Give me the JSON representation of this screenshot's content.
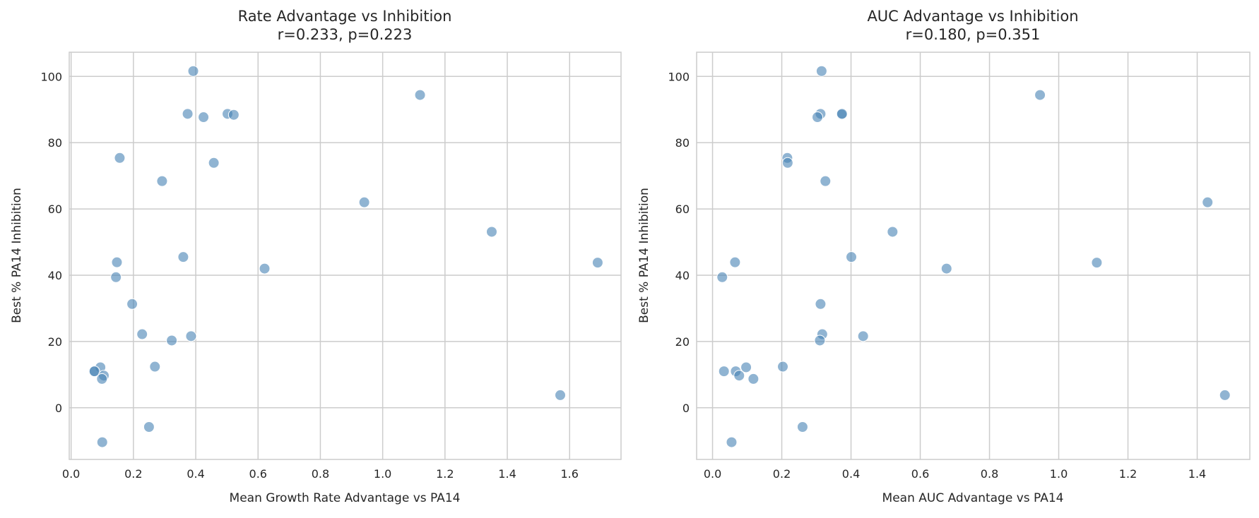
{
  "chart_data": [
    {
      "type": "scatter",
      "title": "Rate Advantage vs Inhibition",
      "subtitle": "r=0.233, p=0.223",
      "xlabel": "Mean Growth Rate Advantage vs PA14",
      "ylabel": "Best % PA14 Inhibition",
      "xlim": [
        -0.006,
        1.765
      ],
      "ylim": [
        -15.6,
        107.3
      ],
      "xticks": [
        "0.0",
        "0.2",
        "0.4",
        "0.6",
        "0.8",
        "1.0",
        "1.2",
        "1.4",
        "1.6"
      ],
      "yticks": [
        "0",
        "20",
        "40",
        "60",
        "80",
        "100"
      ],
      "grid": true,
      "color": "#4682b4",
      "points": [
        [
          0.392,
          101.6
        ],
        [
          0.374,
          88.7
        ],
        [
          0.425,
          87.7
        ],
        [
          0.502,
          88.7
        ],
        [
          0.522,
          88.4
        ],
        [
          1.12,
          94.4
        ],
        [
          0.156,
          75.4
        ],
        [
          0.458,
          73.9
        ],
        [
          0.292,
          68.4
        ],
        [
          0.941,
          62.0
        ],
        [
          1.35,
          53.1
        ],
        [
          0.36,
          45.5
        ],
        [
          0.147,
          43.9
        ],
        [
          1.69,
          43.8
        ],
        [
          0.621,
          42.0
        ],
        [
          0.144,
          39.4
        ],
        [
          0.196,
          31.3
        ],
        [
          0.228,
          22.2
        ],
        [
          0.385,
          21.6
        ],
        [
          0.323,
          20.3
        ],
        [
          0.269,
          12.4
        ],
        [
          0.094,
          12.2
        ],
        [
          0.073,
          11.0
        ],
        [
          0.075,
          11.0
        ],
        [
          0.105,
          9.7
        ],
        [
          0.099,
          8.7
        ],
        [
          1.57,
          3.8
        ],
        [
          0.25,
          -5.8
        ],
        [
          0.1,
          -10.4
        ]
      ]
    },
    {
      "type": "scatter",
      "title": "AUC Advantage vs Inhibition",
      "subtitle": "r=0.180, p=0.351",
      "xlabel": "Mean AUC Advantage vs PA14",
      "ylabel": "Best % PA14 Inhibition",
      "xlim": [
        -0.046,
        1.552
      ],
      "ylim": [
        -15.6,
        107.3
      ],
      "xticks": [
        "0.0",
        "0.2",
        "0.4",
        "0.6",
        "0.8",
        "1.0",
        "1.2",
        "1.4"
      ],
      "yticks": [
        "0",
        "20",
        "40",
        "60",
        "80",
        "100"
      ],
      "grid": true,
      "color": "#4682b4",
      "points": [
        [
          0.315,
          101.6
        ],
        [
          0.312,
          88.7
        ],
        [
          0.303,
          87.7
        ],
        [
          0.373,
          88.5
        ],
        [
          0.374,
          88.7
        ],
        [
          0.946,
          94.4
        ],
        [
          0.216,
          75.4
        ],
        [
          0.217,
          73.9
        ],
        [
          0.326,
          68.4
        ],
        [
          1.43,
          62.0
        ],
        [
          0.52,
          53.1
        ],
        [
          0.401,
          45.5
        ],
        [
          0.065,
          43.9
        ],
        [
          1.11,
          43.8
        ],
        [
          0.676,
          42.0
        ],
        [
          0.028,
          39.4
        ],
        [
          0.312,
          31.3
        ],
        [
          0.317,
          22.2
        ],
        [
          0.435,
          21.6
        ],
        [
          0.31,
          20.3
        ],
        [
          0.203,
          12.4
        ],
        [
          0.097,
          12.2
        ],
        [
          0.033,
          11.0
        ],
        [
          0.067,
          11.0
        ],
        [
          0.077,
          9.7
        ],
        [
          0.118,
          8.7
        ],
        [
          1.48,
          3.8
        ],
        [
          0.26,
          -5.8
        ],
        [
          0.055,
          -10.4
        ]
      ]
    }
  ]
}
